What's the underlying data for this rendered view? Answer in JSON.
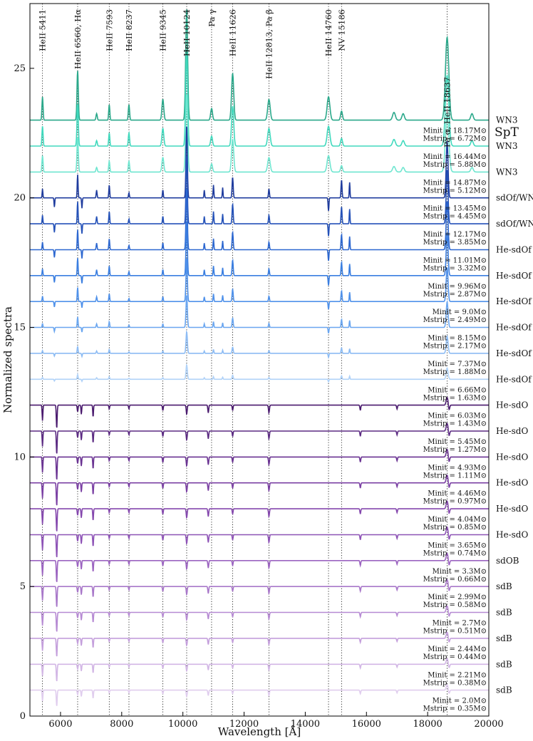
{
  "chart_data": {
    "type": "line",
    "xlabel": "Wavelength [Å]",
    "ylabel": "Normalized spectra",
    "xlim": [
      5000,
      20000
    ],
    "ylim": [
      0,
      27.5
    ],
    "xticks": [
      "6000",
      "8000",
      "10000",
      "12000",
      "14000",
      "16000",
      "18000",
      "20000"
    ],
    "yticks": [
      "0",
      "5",
      "10",
      "15",
      "20",
      "25"
    ],
    "grid": false,
    "spt_header": "SpT",
    "reference_lines": [
      {
        "label": "HeII 5411",
        "x": 5411
      },
      {
        "label": "HeII 6560, Hα",
        "x": 6560
      },
      {
        "label": "HeII 7593",
        "x": 7593
      },
      {
        "label": "HeII 8237",
        "x": 8237
      },
      {
        "label": "HeII 9345",
        "x": 9345
      },
      {
        "label": "HeII 10124",
        "x": 10124
      },
      {
        "label": "Pa γ",
        "x": 10938
      },
      {
        "label": "HeII 11626",
        "x": 11626
      },
      {
        "label": "HeII 12813, Pa β",
        "x": 12813
      },
      {
        "label": "HeII 14760",
        "x": 14760
      },
      {
        "label": "NV 15186",
        "x": 15186
      },
      {
        "label": "Pa α, HeII 18637",
        "x": 18637
      }
    ],
    "series": [
      {
        "offset": 23,
        "spt": "WN3",
        "minit_label": "",
        "mstrip_label": "",
        "color": "#2aa88a",
        "kind": "emission",
        "strength": 1.0
      },
      {
        "offset": 22,
        "spt": "WN3",
        "minit_label": "Minit = 18.17M⊙",
        "mstrip_label": "Mstrip = 6.72M⊙",
        "color": "#40d9bd",
        "kind": "emission",
        "strength": 0.85
      },
      {
        "offset": 21,
        "spt": "WN3",
        "minit_label": "Minit = 16.44M⊙",
        "mstrip_label": "Mstrip = 5.88M⊙",
        "color": "#6fe6d0",
        "kind": "emission",
        "strength": 0.7
      },
      {
        "offset": 20,
        "spt": "sdOf/WN",
        "minit_label": "Minit = 14.87M⊙",
        "mstrip_label": "Mstrip = 5.12M⊙",
        "color": "#1f3c9e",
        "kind": "of",
        "strength": 1.0
      },
      {
        "offset": 19,
        "spt": "sdOf/WN",
        "minit_label": "Minit = 13.45M⊙",
        "mstrip_label": "Mstrip = 4.45M⊙",
        "color": "#2451b8",
        "kind": "of",
        "strength": 0.95
      },
      {
        "offset": 18,
        "spt": "He-sdOf",
        "minit_label": "Minit = 12.17M⊙",
        "mstrip_label": "Mstrip = 3.85M⊙",
        "color": "#2c67d0",
        "kind": "of",
        "strength": 0.85
      },
      {
        "offset": 17,
        "spt": "He-sdOf",
        "minit_label": "Minit = 11.01M⊙",
        "mstrip_label": "Mstrip = 3.32M⊙",
        "color": "#3a7ee0",
        "kind": "of",
        "strength": 0.75
      },
      {
        "offset": 16,
        "spt": "He-sdOf",
        "minit_label": "Minit = 9.96M⊙",
        "mstrip_label": "Mstrip = 2.87M⊙",
        "color": "#4f91ea",
        "kind": "of",
        "strength": 0.6
      },
      {
        "offset": 15,
        "spt": "He-sdOf",
        "minit_label": "Minit = 9.0M⊙",
        "mstrip_label": "Mstrip = 2.49M⊙",
        "color": "#6aa6f0",
        "kind": "of",
        "strength": 0.45
      },
      {
        "offset": 14,
        "spt": "He-sdOf",
        "minit_label": "Minit = 8.15M⊙",
        "mstrip_label": "Mstrip = 2.17M⊙",
        "color": "#8dbcf4",
        "kind": "of",
        "strength": 0.3
      },
      {
        "offset": 13,
        "spt": "He-sdOf",
        "minit_label": "Minit = 7.37M⊙",
        "mstrip_label": "Mstrip = 1.88M⊙",
        "color": "#b0d2f8",
        "kind": "of",
        "strength": 0.2
      },
      {
        "offset": 12,
        "spt": "He-sdO",
        "minit_label": "Minit = 6.66M⊙",
        "mstrip_label": "Mstrip = 1.63M⊙",
        "color": "#4a1a6e",
        "kind": "absorption",
        "strength": 1.0
      },
      {
        "offset": 11,
        "spt": "He-sdO",
        "minit_label": "Minit = 6.03M⊙",
        "mstrip_label": "Mstrip = 1.43M⊙",
        "color": "#5b2a82",
        "kind": "absorption",
        "strength": 1.0
      },
      {
        "offset": 10,
        "spt": "He-sdO",
        "minit_label": "Minit = 5.45M⊙",
        "mstrip_label": "Mstrip = 1.27M⊙",
        "color": "#6a3392",
        "kind": "absorption",
        "strength": 1.0
      },
      {
        "offset": 9,
        "spt": "He-sdO",
        "minit_label": "Minit = 4.93M⊙",
        "mstrip_label": "Mstrip = 1.11M⊙",
        "color": "#7a3fa3",
        "kind": "absorption",
        "strength": 1.0
      },
      {
        "offset": 8,
        "spt": "He-sdO",
        "minit_label": "Minit = 4.46M⊙",
        "mstrip_label": "Mstrip = 0.97M⊙",
        "color": "#8447ad",
        "kind": "absorption",
        "strength": 1.0
      },
      {
        "offset": 7,
        "spt": "He-sdO",
        "minit_label": "Minit = 4.04M⊙",
        "mstrip_label": "Mstrip = 0.85M⊙",
        "color": "#8d52b6",
        "kind": "absorption",
        "strength": 1.0
      },
      {
        "offset": 6,
        "spt": "sdOB",
        "minit_label": "Minit = 3.65M⊙",
        "mstrip_label": "Mstrip = 0.74M⊙",
        "color": "#9b63c0",
        "kind": "absorption",
        "strength": 0.95
      },
      {
        "offset": 5,
        "spt": "sdB",
        "minit_label": "Minit = 3.3M⊙",
        "mstrip_label": "Mstrip = 0.66M⊙",
        "color": "#a877c9",
        "kind": "absorption",
        "strength": 0.9
      },
      {
        "offset": 4,
        "spt": "sdB",
        "minit_label": "Minit = 2.99M⊙",
        "mstrip_label": "Mstrip = 0.58M⊙",
        "color": "#b68ad3",
        "kind": "absorption",
        "strength": 0.85
      },
      {
        "offset": 3,
        "spt": "sdB",
        "minit_label": "Minit = 2.7M⊙",
        "mstrip_label": "Mstrip = 0.51M⊙",
        "color": "#c49fdc",
        "kind": "absorption",
        "strength": 0.8
      },
      {
        "offset": 2,
        "spt": "sdB",
        "minit_label": "Minit = 2.44M⊙",
        "mstrip_label": "Mstrip = 0.44M⊙",
        "color": "#d2b6e5",
        "kind": "absorption",
        "strength": 0.75
      },
      {
        "offset": 1,
        "spt": "sdB",
        "minit_label": "Minit = 2.21M⊙",
        "mstrip_label": "Mstrip = 0.38M⊙",
        "color": "#e0cdee",
        "kind": "absorption",
        "strength": 0.7
      },
      {
        "offset": 0,
        "spt": "",
        "minit_label": "Minit = 2.0M⊙",
        "mstrip_label": "Mstrip = 0.35M⊙",
        "color": "#e0cdee",
        "kind": "none",
        "strength": 0
      }
    ]
  }
}
